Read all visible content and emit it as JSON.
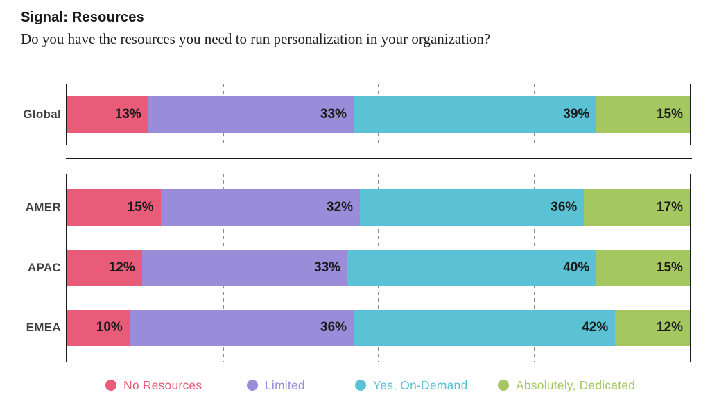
{
  "page": {
    "title": "Signal: Resources",
    "question": "Do you have the resources you need to run personalization in your organization?"
  },
  "chart_data": {
    "type": "bar",
    "variant": "horizontal-stacked",
    "title": "Signal: Resources",
    "subtitle": "Do you have the resources you need to run personalization in your organization?",
    "categories": [
      "Global",
      "AMER",
      "APAC",
      "EMEA"
    ],
    "series": [
      {
        "name": "No Resources",
        "color": "#E85C79",
        "values": [
          13,
          15,
          12,
          10
        ]
      },
      {
        "name": "Limited",
        "color": "#998CD9",
        "values": [
          33,
          32,
          33,
          36
        ]
      },
      {
        "name": "Yes, On-Demand",
        "color": "#5BC2D6",
        "values": [
          39,
          36,
          40,
          42
        ]
      },
      {
        "name": "Absolutely, Dedicated",
        "color": "#A4C75F",
        "values": [
          15,
          17,
          15,
          12
        ]
      }
    ],
    "value_suffix": "%",
    "xlim": [
      0,
      100
    ],
    "gridlines_percent": [
      25,
      50,
      75
    ],
    "grid_style": "dashed-vertical",
    "legend_position": "bottom",
    "groups": [
      [
        "Global"
      ],
      [
        "AMER",
        "APAC",
        "EMEA"
      ]
    ],
    "value_label_position": "inside-right"
  },
  "colors": {
    "axis": "#1a1a1a",
    "gridline": "#8c8c8c",
    "value_text": "#191919",
    "row_label_text": "#3f3f3f"
  }
}
